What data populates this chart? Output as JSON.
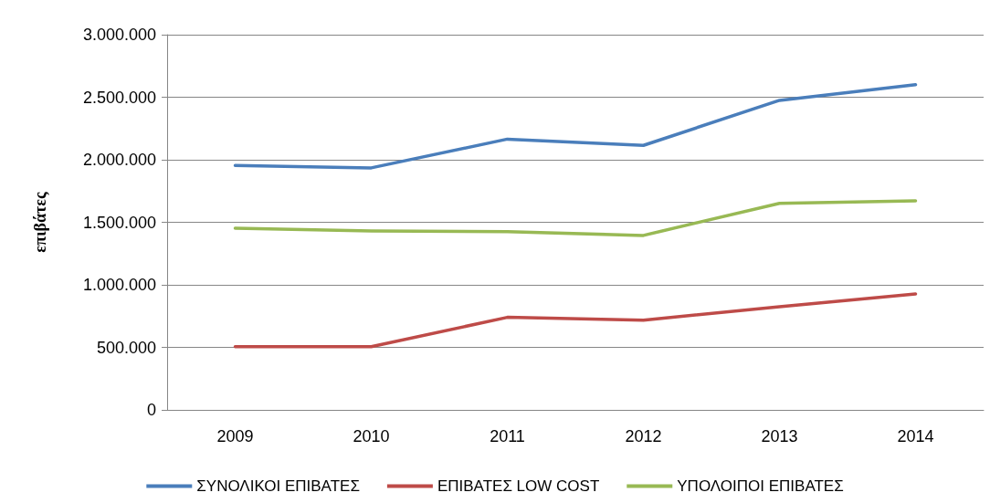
{
  "chart_data": {
    "type": "line",
    "ylabel": "επιβάτες",
    "categories": [
      "2009",
      "2010",
      "2011",
      "2012",
      "2013",
      "2014"
    ],
    "series": [
      {
        "name": "ΣΥΝΟΛΙΚΟΙ ΕΠΙΒΑΤΕΣ",
        "color": "#4a7ebb",
        "values": [
          1955000,
          1935000,
          2165000,
          2115000,
          2475000,
          2600000
        ]
      },
      {
        "name": "ΕΠΙΒΑΤΕΣ LOW COST",
        "color": "#be4b48",
        "values": [
          505000,
          505000,
          740000,
          718000,
          825000,
          927000
        ]
      },
      {
        "name": "ΥΠΟΛΟΙΠΟΙ ΕΠΙΒΑΤΕΣ",
        "color": "#98b954",
        "values": [
          1452000,
          1430000,
          1425000,
          1395000,
          1652000,
          1672000
        ]
      }
    ],
    "ylim": [
      0,
      3000000
    ],
    "yticks": [
      0,
      {
        "value": 500000,
        "label": "500.000"
      },
      {
        "value": 1000000,
        "label": "1.000.000"
      },
      {
        "value": 1500000,
        "label": "1.500.000"
      },
      {
        "value": 2000000,
        "label": "2.000.000"
      },
      {
        "value": 2500000,
        "label": "2.500.000"
      },
      {
        "value": 3000000,
        "label": "3.000.000"
      }
    ],
    "grid": "y",
    "legend": "bottom",
    "marker": "none",
    "line_style": "solid"
  }
}
